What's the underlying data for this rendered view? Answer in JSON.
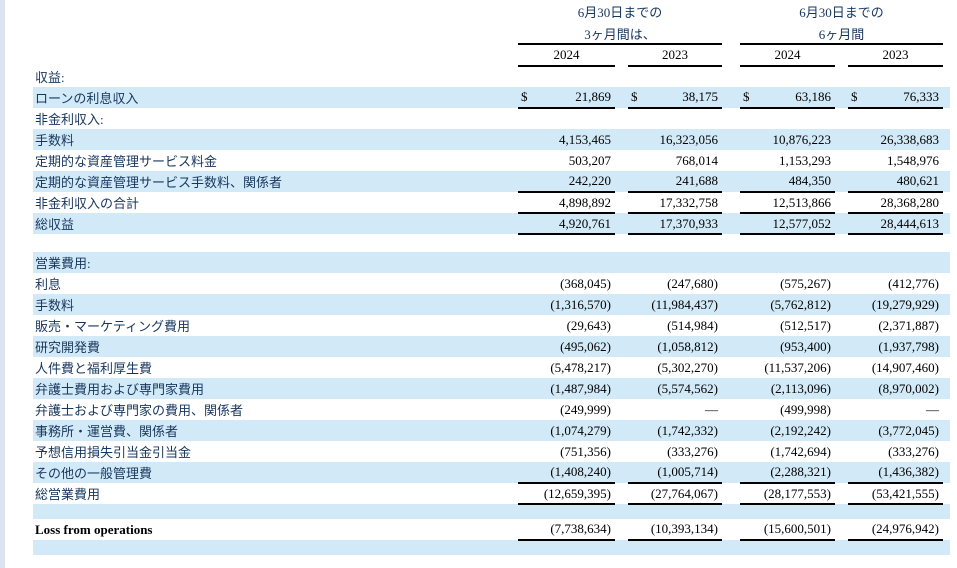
{
  "table": {
    "col_groups": [
      {
        "line1": "6月30日までの",
        "line2": "3ヶ月間は、"
      },
      {
        "line1": "6月30日までの",
        "line2": "6ヶ月間"
      }
    ],
    "years": [
      "2024",
      "2023",
      "2024",
      "2023"
    ],
    "currency_symbol": "$",
    "rows": [
      {
        "label": "収益:",
        "shade": false,
        "values": [
          "",
          "",
          "",
          ""
        ]
      },
      {
        "label": "ローンの利息収入",
        "shade": true,
        "dollar": true,
        "underline": true,
        "values": [
          "21,869",
          "38,175",
          "63,186",
          "76,333"
        ]
      },
      {
        "label": "非金利収入:",
        "shade": false,
        "values": [
          "",
          "",
          "",
          ""
        ]
      },
      {
        "label": "手数料",
        "shade": true,
        "values": [
          "4,153,465",
          "16,323,056",
          "10,876,223",
          "26,338,683"
        ]
      },
      {
        "label": "定期的な資産管理サービス料金",
        "shade": false,
        "values": [
          "503,207",
          "768,014",
          "1,153,293",
          "1,548,976"
        ]
      },
      {
        "label": "定期的な資産管理サービス手数料、関係者",
        "shade": true,
        "underline": true,
        "values": [
          "242,220",
          "241,688",
          "484,350",
          "480,621"
        ]
      },
      {
        "label": "非金利収入の合計",
        "shade": false,
        "underline": true,
        "values": [
          "4,898,892",
          "17,332,758",
          "12,513,866",
          "28,368,280"
        ]
      },
      {
        "label": "総収益",
        "shade": true,
        "underline": true,
        "values": [
          "4,920,761",
          "17,370,933",
          "12,577,052",
          "28,444,613"
        ]
      },
      {
        "label": "",
        "shade": false,
        "spacer": "lg",
        "values": [
          "",
          "",
          "",
          ""
        ]
      },
      {
        "label": "営業費用:",
        "shade": true,
        "values": [
          "",
          "",
          "",
          ""
        ]
      },
      {
        "label": "利息",
        "shade": false,
        "values": [
          "(368,045)",
          "(247,680)",
          "(575,267)",
          "(412,776)"
        ]
      },
      {
        "label": "手数料",
        "shade": true,
        "values": [
          "(1,316,570)",
          "(11,984,437)",
          "(5,762,812)",
          "(19,279,929)"
        ]
      },
      {
        "label": "販売・マーケティング費用",
        "shade": false,
        "values": [
          "(29,643)",
          "(514,984)",
          "(512,517)",
          "(2,371,887)"
        ]
      },
      {
        "label": "研究開発費",
        "shade": true,
        "values": [
          "(495,062)",
          "(1,058,812)",
          "(953,400)",
          "(1,937,798)"
        ]
      },
      {
        "label": "人件費と福利厚生費",
        "shade": false,
        "values": [
          "(5,478,217)",
          "(5,302,270)",
          "(11,537,206)",
          "(14,907,460)"
        ]
      },
      {
        "label": "弁護士費用および専門家費用",
        "shade": true,
        "values": [
          "(1,487,984)",
          "(5,574,562)",
          "(2,113,096)",
          "(8,970,002)"
        ]
      },
      {
        "label": "弁護士および専門家の費用、関係者",
        "shade": false,
        "values": [
          "(249,999)",
          "—",
          "(499,998)",
          "—"
        ]
      },
      {
        "label": "事務所・運営費、関係者",
        "shade": true,
        "values": [
          "(1,074,279)",
          "(1,742,332)",
          "(2,192,242)",
          "(3,772,045)"
        ]
      },
      {
        "label": "予想信用損失引当金引当金",
        "shade": false,
        "values": [
          "(751,356)",
          "(333,276)",
          "(1,742,694)",
          "(333,276)"
        ]
      },
      {
        "label": "その他の一般管理費",
        "shade": true,
        "underline": true,
        "values": [
          "(1,408,240)",
          "(1,005,714)",
          "(2,288,321)",
          "(1,436,382)"
        ]
      },
      {
        "label": "総営業費用",
        "shade": false,
        "underline": true,
        "values": [
          "(12,659,395)",
          "(27,764,067)",
          "(28,177,553)",
          "(53,421,555)"
        ]
      },
      {
        "label": "",
        "shade": true,
        "spacer": "sm",
        "values": [
          "",
          "",
          "",
          ""
        ]
      },
      {
        "label": "Loss from operations",
        "shade": false,
        "bold": true,
        "underline": true,
        "values": [
          "(7,738,634)",
          "(10,393,134)",
          "(15,600,501)",
          "(24,976,942)"
        ]
      },
      {
        "label": "",
        "shade": true,
        "spacer": "sm",
        "values": [
          "",
          "",
          "",
          ""
        ]
      }
    ]
  }
}
